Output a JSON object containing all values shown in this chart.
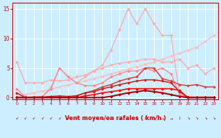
{
  "x": [
    0,
    1,
    2,
    3,
    4,
    5,
    6,
    7,
    8,
    9,
    10,
    11,
    12,
    13,
    14,
    15,
    16,
    17,
    18,
    19,
    20,
    21,
    22,
    23
  ],
  "lines": [
    {
      "comment": "light pink diagonal trend - goes from low-left to high-right",
      "y": [
        0.2,
        0.5,
        0.8,
        1.1,
        1.4,
        1.8,
        2.1,
        2.5,
        2.8,
        3.2,
        3.6,
        4.0,
        4.4,
        4.8,
        5.2,
        5.6,
        6.0,
        6.5,
        7.0,
        7.5,
        8.0,
        8.5,
        9.5,
        10.5
      ],
      "color": "#ffbbbb",
      "lw": 1.0,
      "marker": "D",
      "ms": 2.0
    },
    {
      "comment": "light pink line - starts ~6, dips then gradually rises with spikes",
      "y": [
        6.0,
        2.5,
        2.5,
        2.5,
        3.0,
        2.8,
        3.0,
        3.5,
        3.8,
        4.5,
        5.0,
        5.5,
        5.8,
        6.0,
        6.2,
        6.5,
        6.5,
        6.0,
        6.0,
        6.5,
        5.0,
        5.5,
        4.0,
        5.0
      ],
      "color": "#ffaaaa",
      "lw": 1.0,
      "marker": "D",
      "ms": 2.0
    },
    {
      "comment": "medium pink with spikes around 14-16 going to 15",
      "y": [
        0.0,
        0.0,
        0.0,
        0.2,
        1.8,
        5.0,
        3.5,
        2.5,
        3.5,
        4.5,
        5.5,
        8.0,
        11.5,
        15.0,
        12.5,
        15.0,
        12.5,
        10.5,
        10.5,
        0.5,
        0.2,
        0.1,
        0.1,
        0.0
      ],
      "color": "#ffaaaa",
      "lw": 1.0,
      "marker": "D",
      "ms": 2.0
    },
    {
      "comment": "salmon/medium pink - rises to ~5 peak around 15-16 then drops",
      "y": [
        1.5,
        0.1,
        0.1,
        0.2,
        1.5,
        5.0,
        3.5,
        2.5,
        2.0,
        2.0,
        2.5,
        3.5,
        4.0,
        4.5,
        4.5,
        5.0,
        4.5,
        5.0,
        4.0,
        0.5,
        0.0,
        0.1,
        0.1,
        0.1
      ],
      "color": "#ff8888",
      "lw": 1.0,
      "marker": "D",
      "ms": 2.0
    },
    {
      "comment": "dark red - gradually increases to ~5 then drops",
      "y": [
        0.0,
        0.0,
        0.0,
        0.0,
        0.2,
        0.3,
        0.2,
        0.3,
        0.8,
        1.2,
        1.8,
        2.2,
        2.8,
        3.2,
        3.5,
        5.0,
        5.0,
        3.2,
        2.8,
        2.2,
        2.0,
        2.2,
        1.8,
        1.8
      ],
      "color": "#dd4444",
      "lw": 1.2,
      "marker": "D",
      "ms": 2.0
    },
    {
      "comment": "red - mostly flat near 0, slight rise",
      "y": [
        0.0,
        0.0,
        0.0,
        0.0,
        0.0,
        0.0,
        0.0,
        0.0,
        0.3,
        0.5,
        0.8,
        1.0,
        1.2,
        1.5,
        1.5,
        1.5,
        1.5,
        1.5,
        1.5,
        1.2,
        0.0,
        0.0,
        0.0,
        0.0
      ],
      "color": "#ff0000",
      "lw": 1.2,
      "marker": "D",
      "ms": 2.0
    },
    {
      "comment": "dark red flat near 0",
      "y": [
        0.8,
        0.0,
        0.1,
        0.1,
        0.2,
        0.1,
        0.1,
        0.3,
        0.8,
        1.0,
        1.5,
        1.8,
        2.2,
        2.5,
        2.8,
        3.0,
        3.0,
        2.8,
        2.5,
        1.0,
        0.0,
        0.0,
        0.0,
        0.0
      ],
      "color": "#cc2222",
      "lw": 1.2,
      "marker": "D",
      "ms": 2.0
    },
    {
      "comment": "darkest red near 0",
      "y": [
        0.0,
        0.0,
        0.0,
        0.0,
        0.0,
        0.0,
        0.0,
        0.0,
        0.0,
        0.0,
        0.0,
        0.2,
        0.5,
        0.8,
        1.0,
        1.2,
        1.0,
        0.8,
        0.5,
        0.2,
        0.0,
        0.0,
        0.0,
        0.0
      ],
      "color": "#aa0000",
      "lw": 1.5,
      "marker": "D",
      "ms": 2.0
    }
  ],
  "wind_arrows": [
    "↙",
    "↙",
    "↙",
    "↙",
    "↙",
    "↙",
    "↙",
    "↙",
    "↓",
    "↓",
    "→",
    "→",
    "→",
    "↓",
    "↓",
    "↓",
    "↘",
    "→",
    "→",
    "↓",
    "↘",
    "↘",
    "↘",
    "↘"
  ],
  "xlabel": "Vent moyen/en rafales ( km/h )",
  "xlim": [
    -0.5,
    23.5
  ],
  "ylim": [
    -0.3,
    16
  ],
  "yticks": [
    0,
    5,
    10,
    15
  ],
  "xticks": [
    0,
    1,
    2,
    3,
    4,
    5,
    6,
    7,
    8,
    9,
    10,
    11,
    12,
    13,
    14,
    15,
    16,
    17,
    18,
    19,
    20,
    21,
    22,
    23
  ],
  "bg_color": "#cceeff",
  "grid_color": "#ffffff",
  "tick_color": "#cc0000",
  "label_color": "#cc0000"
}
